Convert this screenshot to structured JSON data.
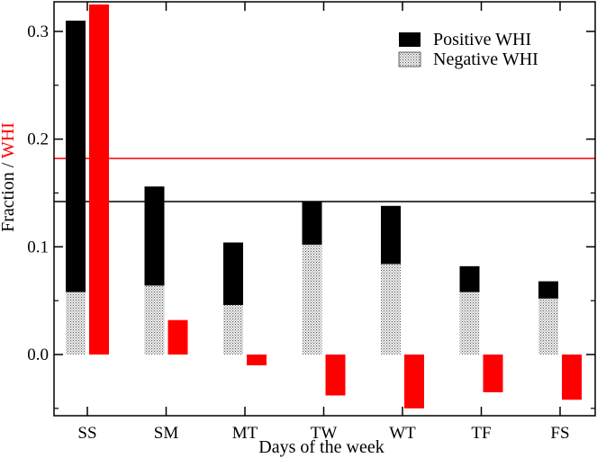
{
  "chart_data": {
    "type": "bar",
    "categories": [
      "SS",
      "SM",
      "MT",
      "TW",
      "WT",
      "TF",
      "FS"
    ],
    "series": [
      {
        "name": "Positive WHI",
        "color": "#000000",
        "values": [
          0.31,
          0.156,
          0.104,
          0.142,
          0.138,
          0.082,
          0.068
        ]
      },
      {
        "name": "Negative WHI",
        "color": "#d8d8d8",
        "pattern": "stippled",
        "values": [
          0.058,
          0.064,
          0.046,
          0.102,
          0.084,
          0.058,
          0.052
        ]
      },
      {
        "name": "WHI",
        "color": "#ff0000",
        "values": [
          0.325,
          0.032,
          -0.01,
          -0.038,
          -0.05,
          -0.035,
          -0.042
        ]
      }
    ],
    "reference_lines": [
      {
        "name": "fraction-mean",
        "value": 0.142,
        "color": "#000000"
      },
      {
        "name": "whi-mean",
        "value": 0.182,
        "color": "#ff0000"
      }
    ],
    "xlabel": "Days of the week",
    "ylabel_parts": [
      {
        "text": "Fraction / ",
        "color": "#000000"
      },
      {
        "text": "WHI",
        "color": "#ff0000"
      }
    ],
    "ylim": [
      -0.06,
      0.33
    ],
    "yticks": [
      0.0,
      0.1,
      0.2,
      0.3
    ],
    "ytick_labels": [
      "0.0",
      "0.1",
      "0.2",
      "0.3"
    ],
    "legend": {
      "position": "top-right",
      "entries": [
        {
          "label": "Positive WHI",
          "style": "solid-black"
        },
        {
          "label": "Negative WHI",
          "style": "stippled"
        }
      ]
    }
  }
}
